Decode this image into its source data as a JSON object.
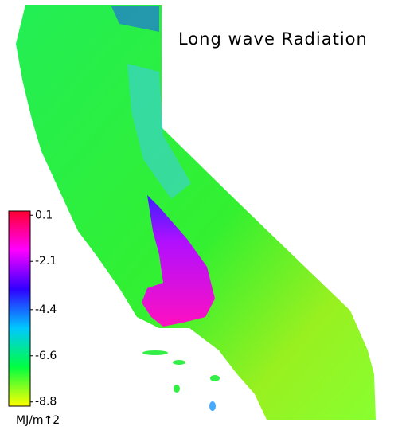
{
  "title": "Long wave Radiation",
  "colorbar": {
    "ylim": [
      -9.0,
      0.3
    ],
    "ticks": [
      0.1,
      -2.1,
      -4.4,
      -6.6,
      -8.8
    ],
    "unit": "MJ/m↑2",
    "colors": [
      "#ff0030",
      "#ff00ff",
      "#3000ff",
      "#00c8ff",
      "#00ff40",
      "#ffff00"
    ]
  }
}
